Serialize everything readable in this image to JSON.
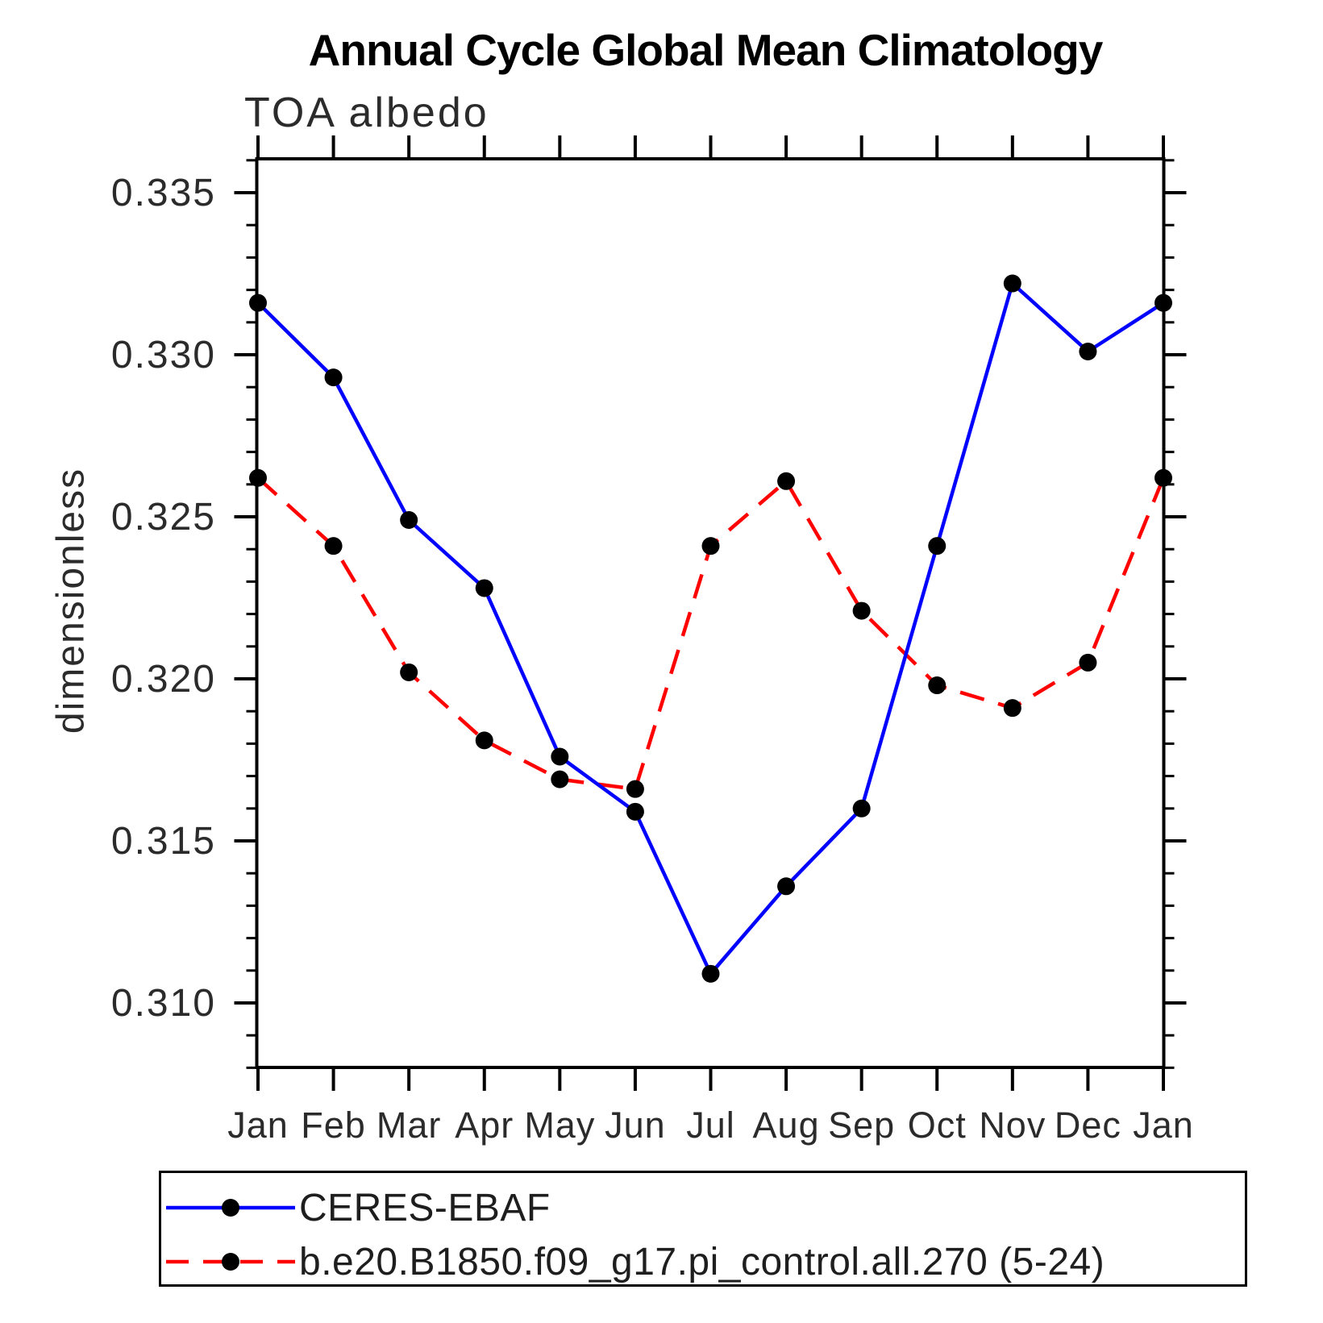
{
  "chart_data": {
    "type": "line",
    "title": "Annual Cycle Global Mean Climatology",
    "subtitle": "TOA albedo",
    "ylabel": "dimensionless",
    "xlabel": "",
    "categories": [
      "Jan",
      "Feb",
      "Mar",
      "Apr",
      "May",
      "Jun",
      "Jul",
      "Aug",
      "Sep",
      "Oct",
      "Nov",
      "Dec",
      "Jan"
    ],
    "series": [
      {
        "name": "CERES-EBAF",
        "color": "#0000ff",
        "line_style": "solid",
        "marker": "filled-circle",
        "marker_color": "#000000",
        "values": [
          0.3316,
          0.3293,
          0.3249,
          0.3228,
          0.3176,
          0.3159,
          0.3109,
          0.3136,
          0.316,
          0.3241,
          0.3322,
          0.3301,
          0.3316
        ]
      },
      {
        "name": "b.e20.B1850.f09_g17.pi_control.all.270 (5-24)",
        "color": "#ff0000",
        "line_style": "dashed",
        "marker": "filled-circle",
        "marker_color": "#000000",
        "values": [
          0.3262,
          0.3241,
          0.3202,
          0.3181,
          0.3169,
          0.3166,
          0.3241,
          0.3261,
          0.3221,
          0.3198,
          0.3191,
          0.3205,
          0.3262
        ]
      }
    ],
    "ylim": [
      0.308,
      0.336
    ],
    "ytick_values": [
      0.335,
      0.33,
      0.325,
      0.32,
      0.315,
      0.31
    ],
    "ytick_labels": [
      "0.335",
      "0.330",
      "0.325",
      "0.320",
      "0.315",
      "0.310"
    ],
    "y_minor_tick_step": 0.001,
    "grid": false,
    "legend_position": "bottom-left",
    "style": {
      "axis_color": "#000000",
      "text_color": "#2b2b2b",
      "background": "#ffffff"
    }
  }
}
